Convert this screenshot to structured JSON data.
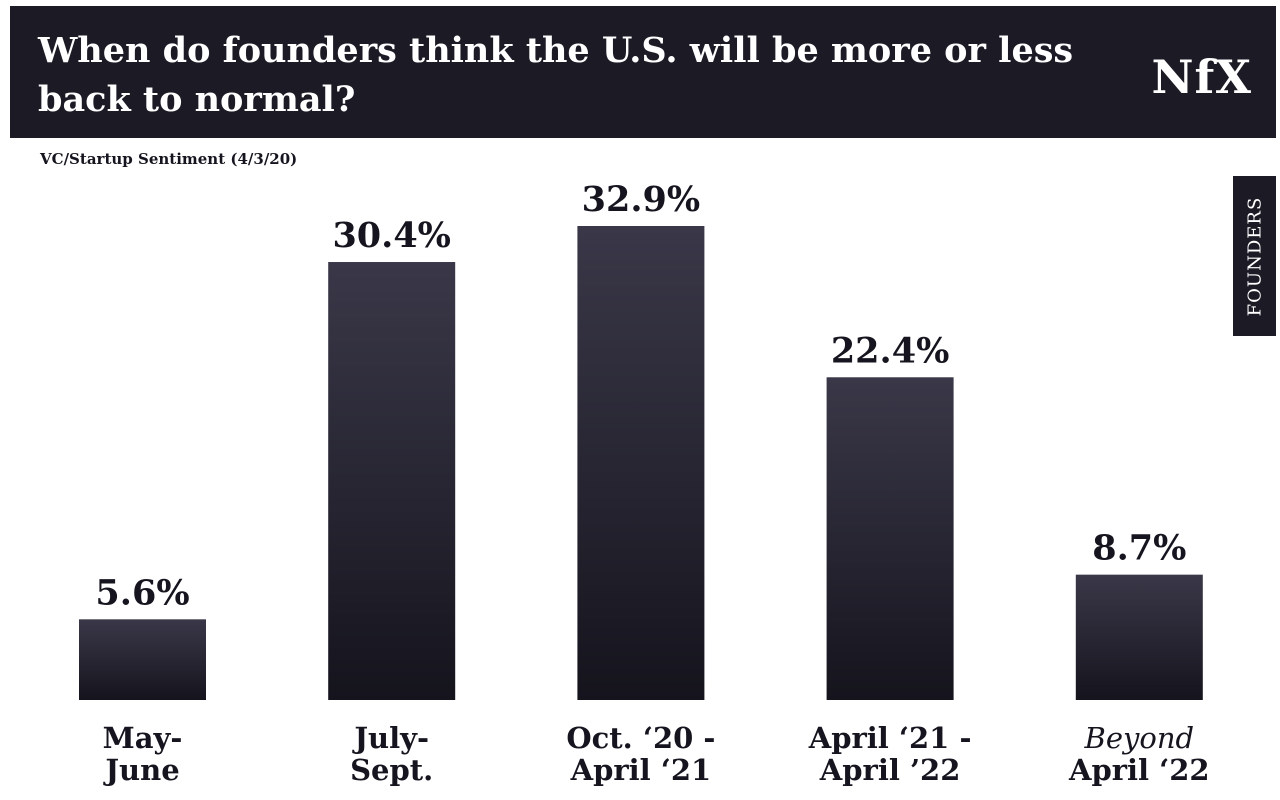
{
  "header": {
    "title": "When do founders think the U.S. will be more or less back to normal?",
    "logo": "NfX"
  },
  "subtitle": "VC/Startup Sentiment (4/3/20)",
  "side_tab": "FOUNDERS",
  "colors": {
    "bar_top": "#3a3848",
    "bar_bottom": "#15141d",
    "header_bg": "#1b1a25"
  },
  "chart_data": {
    "type": "bar",
    "categories": [
      [
        "May-",
        "June"
      ],
      [
        "July-",
        "Sept."
      ],
      [
        "Oct. ‘20 -",
        "April ‘21"
      ],
      [
        "April ‘21 -",
        "April ’22"
      ],
      [
        "Beyond",
        "April ‘22"
      ]
    ],
    "italic_first_line": [
      false,
      false,
      false,
      false,
      true
    ],
    "values": [
      5.6,
      30.4,
      32.9,
      22.4,
      8.7
    ],
    "value_labels": [
      "5.6%",
      "30.4%",
      "32.9%",
      "22.4%",
      "8.7%"
    ],
    "ylim": [
      0,
      32.9
    ],
    "grid": false,
    "legend": "none"
  }
}
